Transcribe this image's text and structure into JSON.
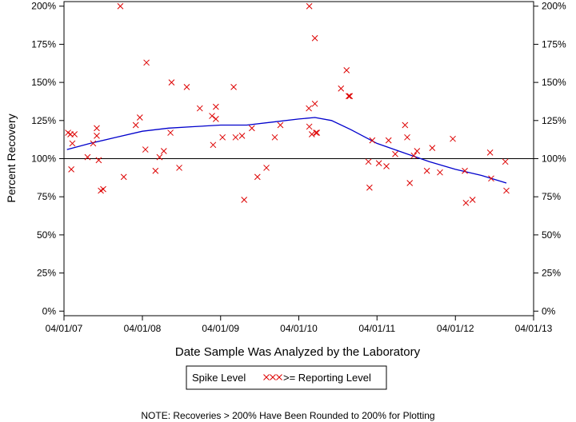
{
  "chart_data": {
    "type": "scatter",
    "xlabel": "Date Sample Was Analyzed by the Laboratory",
    "ylabel": "Percent Recovery",
    "x_ticks": [
      "04/01/07",
      "04/01/08",
      "04/01/09",
      "04/01/10",
      "04/01/11",
      "04/01/12",
      "04/01/13"
    ],
    "y_ticks": [
      "0%",
      "25%",
      "50%",
      "75%",
      "100%",
      "125%",
      "150%",
      "175%",
      "200%"
    ],
    "xlim": [
      "2007-04-01",
      "2013-04-01"
    ],
    "ylim": [
      -3,
      203
    ],
    "y_tick_values": [
      0,
      25,
      50,
      75,
      100,
      125,
      150,
      175,
      200
    ],
    "reference_line": 100,
    "grid": false,
    "legend_position": "bottom-center",
    "legend": {
      "label": "Spike Level",
      "marker_label": ">= Reporting Level"
    },
    "note": "NOTE: Recoveries > 200% Have Been Rounded to 200% for Plotting",
    "colors": {
      "points": "#dd0000",
      "smooth": "#0000cc",
      "axes": "#000000"
    },
    "series": [
      {
        "name": ">= Reporting Level",
        "marker": "x",
        "points": [
          [
            "2007-04-20",
            117
          ],
          [
            "2007-05-01",
            116
          ],
          [
            "2007-05-10",
            110
          ],
          [
            "2007-05-05",
            93
          ],
          [
            "2007-05-20",
            116
          ],
          [
            "2007-07-20",
            101
          ],
          [
            "2007-08-15",
            110
          ],
          [
            "2007-09-01",
            120
          ],
          [
            "2007-09-01",
            115
          ],
          [
            "2007-09-10",
            99
          ],
          [
            "2007-09-20",
            79
          ],
          [
            "2007-10-01",
            80
          ],
          [
            "2007-12-20",
            200
          ],
          [
            "2008-01-05",
            88
          ],
          [
            "2008-03-01",
            122
          ],
          [
            "2008-03-20",
            127
          ],
          [
            "2008-04-15",
            106
          ],
          [
            "2008-04-20",
            163
          ],
          [
            "2008-06-01",
            92
          ],
          [
            "2008-06-20",
            101
          ],
          [
            "2008-07-10",
            105
          ],
          [
            "2008-08-15",
            150
          ],
          [
            "2008-08-10",
            117
          ],
          [
            "2008-09-20",
            94
          ],
          [
            "2008-10-25",
            147
          ],
          [
            "2008-12-25",
            133
          ],
          [
            "2009-02-20",
            128
          ],
          [
            "2009-02-25",
            109
          ],
          [
            "2009-03-10",
            134
          ],
          [
            "2009-03-10",
            126
          ],
          [
            "2009-04-10",
            114
          ],
          [
            "2009-06-01",
            147
          ],
          [
            "2009-06-10",
            114
          ],
          [
            "2009-07-10",
            115
          ],
          [
            "2009-07-20",
            73
          ],
          [
            "2009-08-25",
            120
          ],
          [
            "2009-09-20",
            88
          ],
          [
            "2009-11-01",
            94
          ],
          [
            "2009-12-10",
            114
          ],
          [
            "2010-01-05",
            122
          ],
          [
            "2010-05-20",
            200
          ],
          [
            "2010-05-18",
            133
          ],
          [
            "2010-05-20",
            121
          ],
          [
            "2010-06-01",
            116
          ],
          [
            "2010-06-15",
            179
          ],
          [
            "2010-06-15",
            136
          ],
          [
            "2010-06-20",
            117
          ],
          [
            "2010-06-25",
            117
          ],
          [
            "2010-10-15",
            146
          ],
          [
            "2010-11-10",
            158
          ],
          [
            "2010-11-20",
            141
          ],
          [
            "2010-11-25",
            141
          ],
          [
            "2011-02-20",
            98
          ],
          [
            "2011-02-25",
            81
          ],
          [
            "2011-03-10",
            112
          ],
          [
            "2011-04-10",
            97
          ],
          [
            "2011-05-15",
            95
          ],
          [
            "2011-05-25",
            112
          ],
          [
            "2011-06-25",
            103
          ],
          [
            "2011-08-10",
            122
          ],
          [
            "2011-08-20",
            114
          ],
          [
            "2011-09-01",
            84
          ],
          [
            "2011-09-20",
            102
          ],
          [
            "2011-10-05",
            105
          ],
          [
            "2011-11-20",
            92
          ],
          [
            "2011-12-15",
            107
          ],
          [
            "2012-01-20",
            91
          ],
          [
            "2012-03-20",
            113
          ],
          [
            "2012-05-15",
            92
          ],
          [
            "2012-05-20",
            71
          ],
          [
            "2012-06-20",
            73
          ],
          [
            "2012-09-15",
            87
          ],
          [
            "2012-09-10",
            104
          ],
          [
            "2012-11-20",
            98
          ],
          [
            "2012-11-25",
            79
          ]
        ]
      },
      {
        "name": "Spike Level",
        "type": "line",
        "points": [
          [
            "2007-04-15",
            106
          ],
          [
            "2007-08-01",
            110
          ],
          [
            "2007-12-01",
            114
          ],
          [
            "2008-04-01",
            118
          ],
          [
            "2008-08-01",
            120
          ],
          [
            "2008-12-01",
            121
          ],
          [
            "2009-04-01",
            122
          ],
          [
            "2009-08-01",
            122
          ],
          [
            "2009-12-01",
            124
          ],
          [
            "2010-04-01",
            126
          ],
          [
            "2010-06-15",
            127
          ],
          [
            "2010-09-01",
            125
          ],
          [
            "2010-12-01",
            119
          ],
          [
            "2011-04-01",
            110
          ],
          [
            "2011-08-01",
            104
          ],
          [
            "2011-12-01",
            98
          ],
          [
            "2012-04-01",
            93
          ],
          [
            "2012-08-01",
            89
          ],
          [
            "2012-11-25",
            84
          ]
        ]
      }
    ]
  }
}
